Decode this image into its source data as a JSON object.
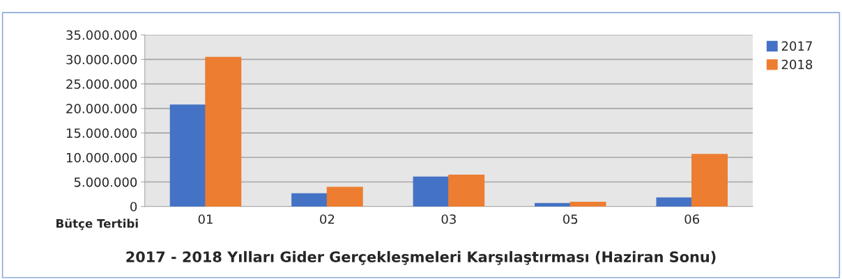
{
  "chart_data": {
    "type": "bar",
    "title": "2017 - 2018 Yılları Gider Gerçekleşmeleri Karşılaştırması (Haziran Sonu)",
    "xlabel": "Bütçe Tertibi",
    "categories": [
      "01",
      "02",
      "03",
      "05",
      "06"
    ],
    "series": [
      {
        "name": "2017",
        "color": "#4472c4",
        "values": [
          20700000,
          2600000,
          6000000,
          600000,
          1750000
        ]
      },
      {
        "name": "2018",
        "color": "#ed7d31",
        "values": [
          30400000,
          3900000,
          6400000,
          850000,
          10600000
        ]
      }
    ],
    "ylim": [
      0,
      35000000
    ],
    "yticks": [
      {
        "value": 0,
        "label": "0"
      },
      {
        "value": 5000000,
        "label": "5.000.000"
      },
      {
        "value": 10000000,
        "label": "10.000.000"
      },
      {
        "value": 15000000,
        "label": "15.000.000"
      },
      {
        "value": 20000000,
        "label": "20.000.000"
      },
      {
        "value": 25000000,
        "label": "25.000.000"
      },
      {
        "value": 30000000,
        "label": "30.000.000"
      },
      {
        "value": 35000000,
        "label": "35.000.000"
      }
    ],
    "grid": "y",
    "legend": "top right"
  }
}
